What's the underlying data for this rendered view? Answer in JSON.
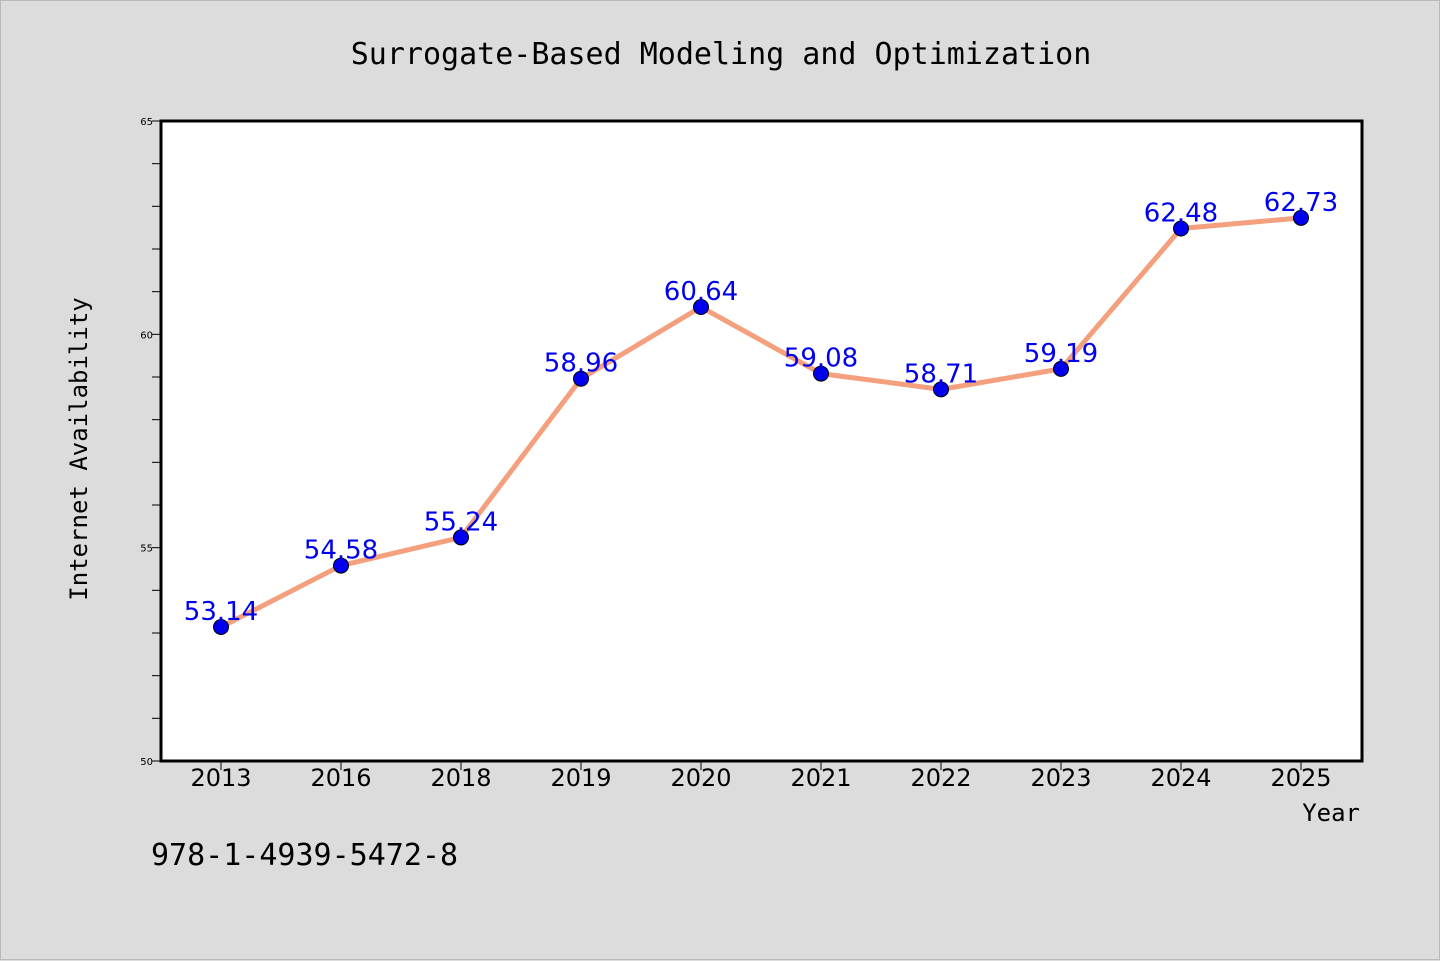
{
  "chart_data": {
    "type": "line",
    "title": "Surrogate-Based Modeling and Optimization",
    "xlabel": "Year",
    "ylabel": "Internet Availability",
    "categories": [
      "2013",
      "2016",
      "2018",
      "2019",
      "2020",
      "2021",
      "2022",
      "2023",
      "2024",
      "2025"
    ],
    "series": [
      {
        "values": [
          53.14,
          54.58,
          55.24,
          58.96,
          60.64,
          59.08,
          58.71,
          59.19,
          62.48,
          62.73
        ],
        "labels": [
          "53.14",
          "54.58",
          "55.24",
          "58.96",
          "60.64",
          "59.08",
          "58.71",
          "59.19",
          "62.48",
          "62.73"
        ]
      }
    ],
    "ylim": [
      50,
      65
    ],
    "yticks": [
      50,
      55,
      60,
      65
    ],
    "ytick_labels": [
      "50",
      "55",
      "60",
      "65"
    ],
    "y_minor_step": 1,
    "grid": false,
    "colors": {
      "line": "#f4a07e",
      "marker": "#0000ee",
      "data_label": "#0000ee",
      "background": "#dcdcdc",
      "plot_area": "#ffffff"
    }
  },
  "footer_text": "978-1-4939-5472-8"
}
